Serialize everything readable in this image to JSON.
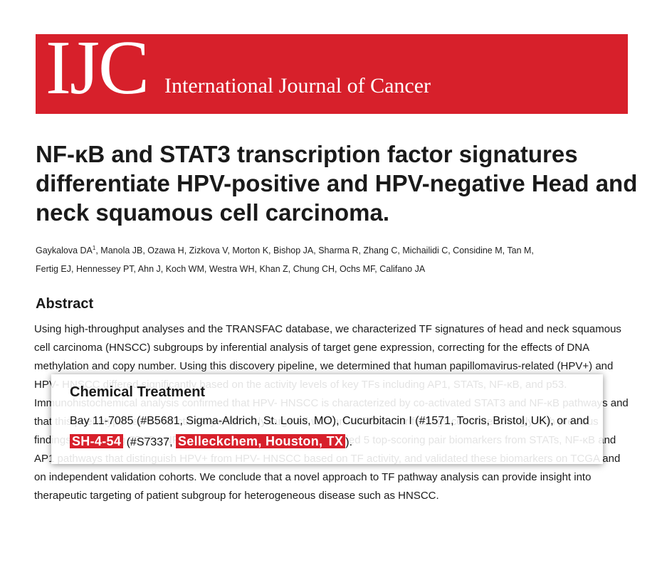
{
  "journal": {
    "logo_mark": "IJC",
    "name": "International Journal of Cancer",
    "brand_color": "#d7202b"
  },
  "article": {
    "title": "NF-κB and STAT3 transcription factor signatures differentiate HPV-positive and HPV-negative Head and neck squamous cell carcinoma.",
    "authors_line1_main": "Gaykalova DA",
    "authors_line1_sup": "1",
    "authors_line1_rest": ", Manola JB, Ozawa H, Zizkova V, Morton K, Bishop JA, Sharma R, Zhang C, Michailidi C, Considine M, Tan M,",
    "authors_line2": "Fertig EJ, Hennessey PT, Ahn J, Koch WM, Westra WH, Khan Z, Chung CH, Ochs MF, Califano JA"
  },
  "abstract": {
    "heading": "Abstract",
    "text": "Using high-throughput analyses and the TRANSFAC database, we characterized TF signatures of head and neck squamous cell carcinoma (HNSCC) subgroups by inferential analysis of target gene expression, correcting for the effects of DNA methylation and copy number. Using this discovery pipeline, we determined that human papillomavirus-related (HPV+) and HPV- HNSCC differed significantly based on the activity levels of key TFs including AP1, STATs, NF-κB, and p53. Immunohistochemical analysis confirmed that HPV- HNSCC is characterized by co-activated STAT3 and NF-κB pathways and that this phenotype can be functionally effectively targeted with an inhibitor. Our findings correlate strongly with previous findings connecting STATs, NF-κB, and AP1 in HNSCC. We identified 5 top-scoring pair biomarkers from STATs, NF-κB and AP1 pathways that distinguish HPV+ from HPV- HNSCC based on TF activity, and validated these biomarkers on TCGA and on independent validation cohorts. We conclude that a novel approach to TF pathway analysis can provide insight into therapeutic targeting of patient subgroup for heterogeneous disease such as HNSCC."
  },
  "callout": {
    "title": "Chemical Treatment",
    "text_1": "Bay 11-7085 (#B5681, Sigma-Aldrich, St. Louis, MO), Cucurbitacin I (#1571, Tocris, Bristol, UK), or and ",
    "highlight_1": "SH-4-54",
    "text_2": " (#S7337, ",
    "highlight_2": "Selleckchem, Houston, TX",
    "text_3": ").",
    "highlight_color": "#d7202b"
  }
}
